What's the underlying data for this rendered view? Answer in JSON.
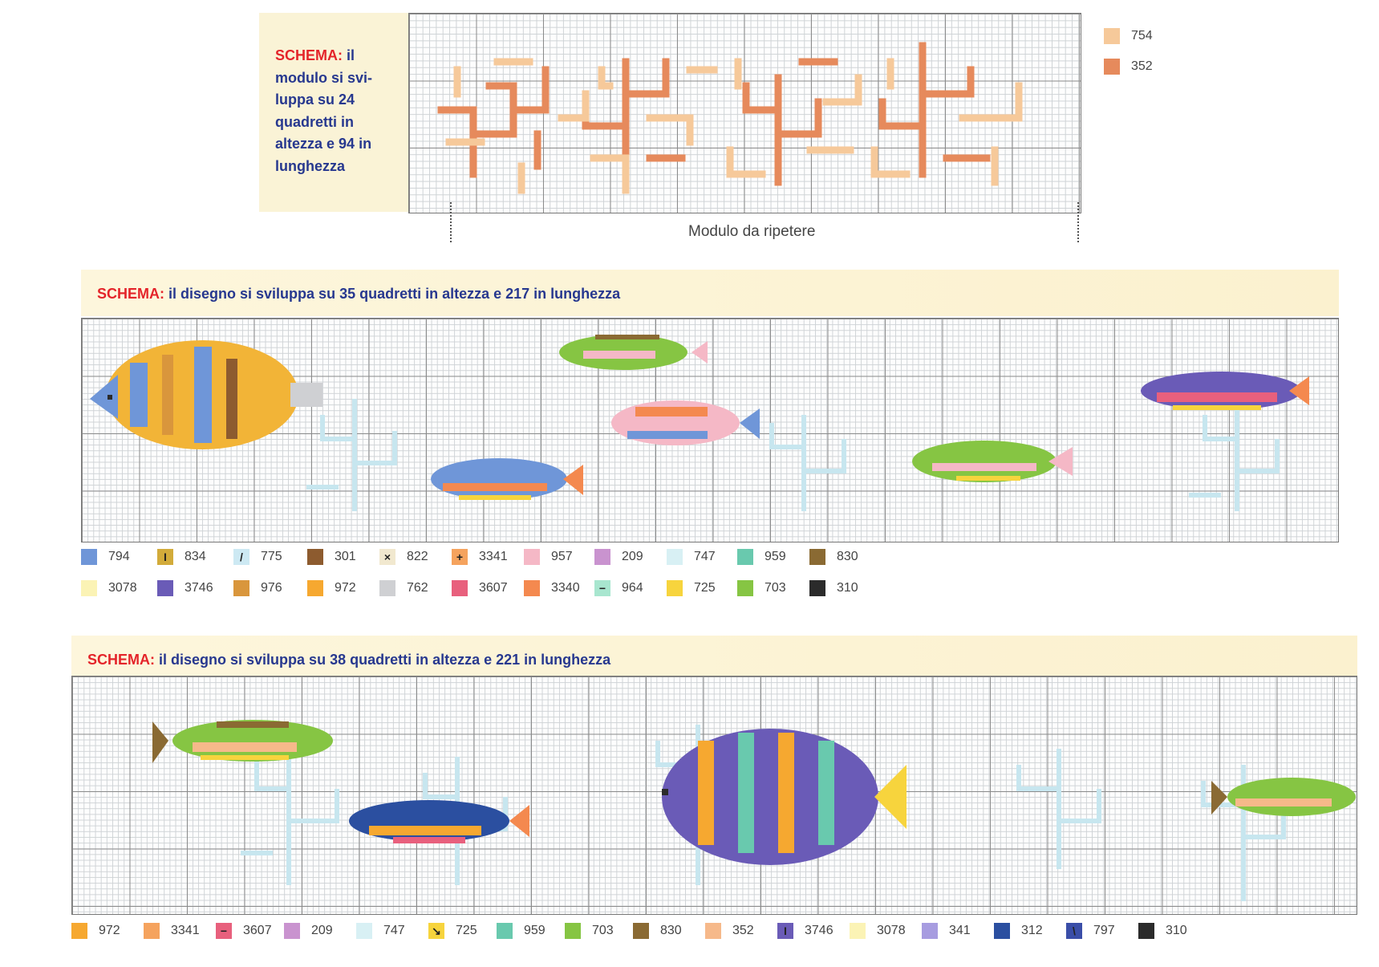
{
  "top_panel": {
    "note_prefix": "SCHEMA:",
    "note_lines": [
      "il",
      "modulo si svi-",
      "luppa su 24",
      "quadretti in",
      "altezza e 94 in",
      "lunghezza"
    ],
    "caption": "Modulo da ripetere",
    "legend": [
      {
        "code": "754",
        "color": "#f6c99a",
        "symbol": ""
      },
      {
        "code": "352",
        "color": "#e68a5c",
        "symbol": ""
      }
    ]
  },
  "middle_panel": {
    "title_prefix": "SCHEMA:",
    "title": "il disegno si sviluppa su 35 quadretti in altezza e 217 in lunghezza",
    "legend_row1": [
      {
        "code": "794",
        "color": "#6f96d8",
        "symbol": ""
      },
      {
        "code": "834",
        "color": "#d2ab3a",
        "symbol": "I"
      },
      {
        "code": "775",
        "color": "#cde9f3",
        "symbol": "/"
      },
      {
        "code": "301",
        "color": "#8d5b2f",
        "symbol": ""
      },
      {
        "code": "822",
        "color": "#f1e8cf",
        "symbol": "×"
      },
      {
        "code": "3341",
        "color": "#f5a35e",
        "symbol": "+"
      },
      {
        "code": "957",
        "color": "#f5b8c6",
        "symbol": ""
      },
      {
        "code": "209",
        "color": "#c993cf",
        "symbol": ""
      },
      {
        "code": "747",
        "color": "#d8f0f4",
        "symbol": ""
      },
      {
        "code": "959",
        "color": "#69c9ae",
        "symbol": ""
      },
      {
        "code": "830",
        "color": "#8a6a33",
        "symbol": ""
      }
    ],
    "legend_row2": [
      {
        "code": "3078",
        "color": "#fbf3b5",
        "symbol": ""
      },
      {
        "code": "3746",
        "color": "#6a5bb7",
        "symbol": ""
      },
      {
        "code": "976",
        "color": "#d9963c",
        "symbol": ""
      },
      {
        "code": "972",
        "color": "#f6a830",
        "symbol": ""
      },
      {
        "code": "762",
        "color": "#cfd0d3",
        "symbol": ""
      },
      {
        "code": "3607",
        "color": "#e8607d",
        "symbol": ""
      },
      {
        "code": "3340",
        "color": "#f4894f",
        "symbol": ""
      },
      {
        "code": "964",
        "color": "#a8e6cf",
        "symbol": "−"
      },
      {
        "code": "725",
        "color": "#f7d43d",
        "symbol": ""
      },
      {
        "code": "703",
        "color": "#86c543",
        "symbol": ""
      },
      {
        "code": "310",
        "color": "#2b2b2b",
        "symbol": ""
      }
    ]
  },
  "bottom_panel": {
    "title_prefix": "SCHEMA:",
    "title": "il disegno si sviluppa su 38 quadretti in altezza e 221 in lunghezza",
    "legend": [
      {
        "code": "972",
        "color": "#f6a830",
        "symbol": ""
      },
      {
        "code": "3341",
        "color": "#f5a35e",
        "symbol": ""
      },
      {
        "code": "3607",
        "color": "#e8607d",
        "symbol": "−"
      },
      {
        "code": "209",
        "color": "#c993cf",
        "symbol": ""
      },
      {
        "code": "747",
        "color": "#d8f0f4",
        "symbol": ""
      },
      {
        "code": "725",
        "color": "#f7d43d",
        "symbol": "↘"
      },
      {
        "code": "959",
        "color": "#69c9ae",
        "symbol": ""
      },
      {
        "code": "703",
        "color": "#86c543",
        "symbol": ""
      },
      {
        "code": "830",
        "color": "#8a6a33",
        "symbol": ""
      },
      {
        "code": "352",
        "color": "#f6b98a",
        "symbol": ""
      },
      {
        "code": "3746",
        "color": "#6a5bb7",
        "symbol": "I"
      },
      {
        "code": "3078",
        "color": "#fbf3b5",
        "symbol": ""
      },
      {
        "code": "341",
        "color": "#a79ce0",
        "symbol": ""
      },
      {
        "code": "312",
        "color": "#2b4fa0",
        "symbol": ""
      },
      {
        "code": "797",
        "color": "#3a4ea8",
        "symbol": "\\"
      },
      {
        "code": "310",
        "color": "#2b2b2b",
        "symbol": ""
      }
    ]
  }
}
